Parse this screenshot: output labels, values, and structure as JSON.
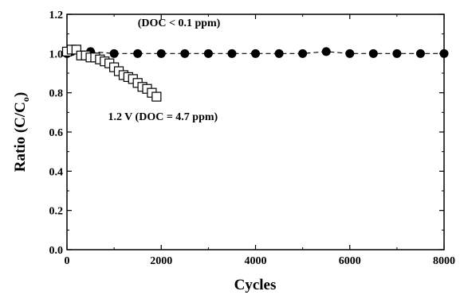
{
  "chart_data": {
    "type": "scatter",
    "xlabel": "Cycles",
    "ylabel_main": "Ratio (C/C",
    "ylabel_sub": "o",
    "ylabel_close": ")",
    "xlim": [
      0,
      8000
    ],
    "ylim": [
      0.0,
      1.2
    ],
    "xticks": [
      0,
      2000,
      4000,
      6000,
      8000
    ],
    "xtick_labels": [
      "0",
      "2000",
      "4000",
      "6000",
      "8000"
    ],
    "yticks": [
      0.0,
      0.2,
      0.4,
      0.6,
      0.8,
      1.0,
      1.2
    ],
    "ytick_labels": [
      "0.0",
      "0.2",
      "0.4",
      "0.6",
      "0.8",
      "1.0",
      "1.2"
    ],
    "grid": false,
    "annotations": [
      {
        "text": "(DOC < 0.1 ppm)",
        "x": 1500,
        "y": 1.14
      },
      {
        "text": "1.2 V (DOC = 4.7 ppm)",
        "x": 870,
        "y": 0.66
      }
    ],
    "series": [
      {
        "marker": "filled-circle",
        "line": "dashed",
        "color": "#000000",
        "x": [
          0,
          100,
          500,
          1000,
          1500,
          2000,
          2500,
          3000,
          3500,
          4000,
          4500,
          5000,
          5500,
          6000,
          6500,
          7000,
          7500,
          8000
        ],
        "y": [
          1.0,
          1.01,
          1.01,
          1.0,
          1.0,
          1.0,
          1.0,
          1.0,
          1.0,
          1.0,
          1.0,
          1.0,
          1.01,
          1.0,
          1.0,
          1.0,
          1.0,
          1.0
        ]
      },
      {
        "marker": "open-square",
        "line": "solid",
        "color": "#000000",
        "x": [
          0,
          100,
          200,
          300,
          400,
          500,
          600,
          700,
          800,
          900,
          1000,
          1100,
          1200,
          1300,
          1400,
          1500,
          1600,
          1700,
          1800,
          1900
        ],
        "y": [
          1.01,
          1.02,
          1.02,
          0.99,
          0.99,
          0.98,
          0.98,
          0.97,
          0.96,
          0.95,
          0.93,
          0.91,
          0.89,
          0.88,
          0.87,
          0.85,
          0.83,
          0.82,
          0.8,
          0.78
        ]
      }
    ]
  }
}
